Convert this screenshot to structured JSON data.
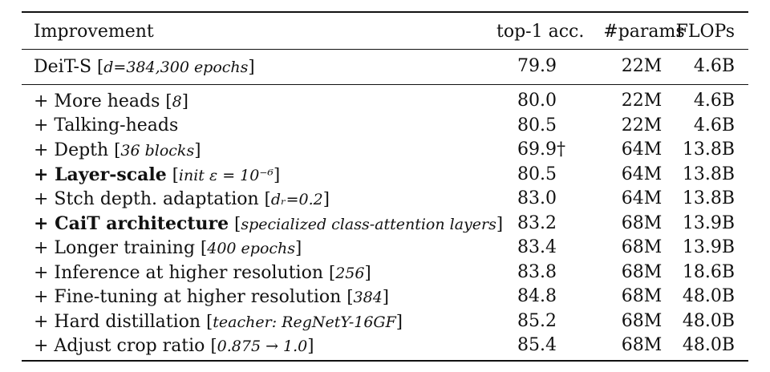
{
  "table": {
    "headers": {
      "improvement": "Improvement",
      "accuracy": "top-1 acc.",
      "params": "#params",
      "flops": "FLOPs"
    },
    "baseline": {
      "name": "DeiT-S",
      "note": "d=384,300 epochs",
      "accuracy": "79.9",
      "params": "22M",
      "flops": "4.6B",
      "bold": false
    },
    "rows": [
      {
        "name": "+ More heads",
        "note": "8",
        "accuracy": "80.0",
        "params": "22M",
        "flops": "4.6B",
        "bold": false
      },
      {
        "name": "+ Talking-heads",
        "note": "",
        "accuracy": "80.5",
        "params": "22M",
        "flops": "4.6B",
        "bold": false
      },
      {
        "name": "+ Depth",
        "note": "36 blocks",
        "accuracy": "69.9†",
        "params": "64M",
        "flops": "13.8B",
        "bold": false
      },
      {
        "name": "+ Layer-scale",
        "note": "init ε = 10⁻⁶",
        "accuracy": "80.5",
        "params": "64M",
        "flops": "13.8B",
        "bold": true
      },
      {
        "name": "+ Stch depth. adaptation",
        "note": "dᵣ=0.2",
        "accuracy": "83.0",
        "params": "64M",
        "flops": "13.8B",
        "bold": false
      },
      {
        "name": "+ CaiT architecture",
        "note": "specialized class-attention layers",
        "accuracy": "83.2",
        "params": "68M",
        "flops": "13.9B",
        "bold": true
      },
      {
        "name": "+ Longer training",
        "note": "400 epochs",
        "accuracy": "83.4",
        "params": "68M",
        "flops": "13.9B",
        "bold": false
      },
      {
        "name": "+ Inference at higher resolution",
        "note": "256",
        "accuracy": "83.8",
        "params": "68M",
        "flops": "18.6B",
        "bold": false
      },
      {
        "name": "+ Fine-tuning at higher resolution",
        "note": "384",
        "accuracy": "84.8",
        "params": "68M",
        "flops": "48.0B",
        "bold": false
      },
      {
        "name": "+ Hard distillation",
        "note": "teacher: RegNetY-16GF",
        "accuracy": "85.2",
        "params": "68M",
        "flops": "48.0B",
        "bold": false
      },
      {
        "name": "+ Adjust crop ratio",
        "note": "0.875 → 1.0",
        "accuracy": "85.4",
        "params": "68M",
        "flops": "48.0B",
        "bold": false
      }
    ]
  }
}
